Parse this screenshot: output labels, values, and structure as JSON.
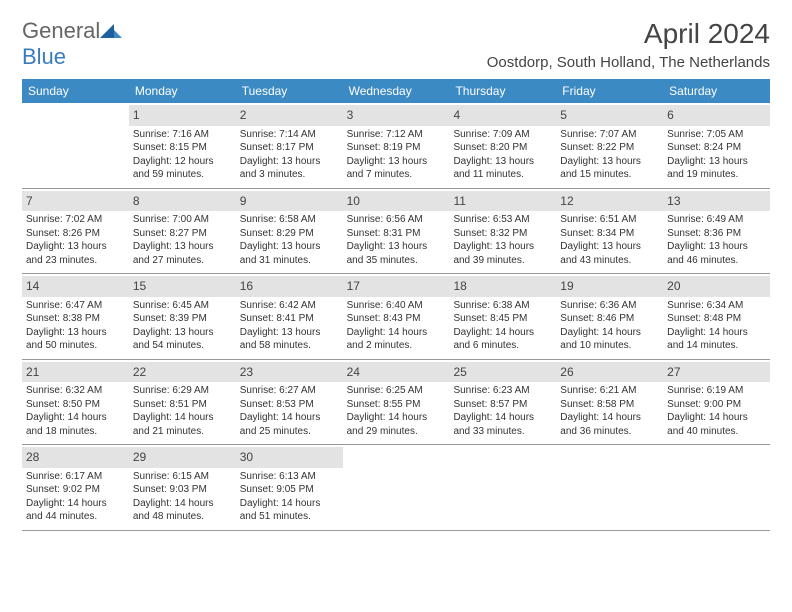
{
  "logo": {
    "text1": "General",
    "text2": "Blue"
  },
  "title": "April 2024",
  "location": "Oostdorp, South Holland, The Netherlands",
  "colors": {
    "header_bg": "#3b8ac4",
    "header_text": "#ffffff",
    "daynum_bg": "#e3e3e3",
    "row_border": "#999999",
    "text": "#333333",
    "logo_blue": "#3b7cbf"
  },
  "day_names": [
    "Sunday",
    "Monday",
    "Tuesday",
    "Wednesday",
    "Thursday",
    "Friday",
    "Saturday"
  ],
  "weeks": [
    [
      {
        "n": "",
        "sr": "",
        "ss": "",
        "dl": ""
      },
      {
        "n": "1",
        "sr": "7:16 AM",
        "ss": "8:15 PM",
        "dl": "12 hours and 59 minutes."
      },
      {
        "n": "2",
        "sr": "7:14 AM",
        "ss": "8:17 PM",
        "dl": "13 hours and 3 minutes."
      },
      {
        "n": "3",
        "sr": "7:12 AM",
        "ss": "8:19 PM",
        "dl": "13 hours and 7 minutes."
      },
      {
        "n": "4",
        "sr": "7:09 AM",
        "ss": "8:20 PM",
        "dl": "13 hours and 11 minutes."
      },
      {
        "n": "5",
        "sr": "7:07 AM",
        "ss": "8:22 PM",
        "dl": "13 hours and 15 minutes."
      },
      {
        "n": "6",
        "sr": "7:05 AM",
        "ss": "8:24 PM",
        "dl": "13 hours and 19 minutes."
      }
    ],
    [
      {
        "n": "7",
        "sr": "7:02 AM",
        "ss": "8:26 PM",
        "dl": "13 hours and 23 minutes."
      },
      {
        "n": "8",
        "sr": "7:00 AM",
        "ss": "8:27 PM",
        "dl": "13 hours and 27 minutes."
      },
      {
        "n": "9",
        "sr": "6:58 AM",
        "ss": "8:29 PM",
        "dl": "13 hours and 31 minutes."
      },
      {
        "n": "10",
        "sr": "6:56 AM",
        "ss": "8:31 PM",
        "dl": "13 hours and 35 minutes."
      },
      {
        "n": "11",
        "sr": "6:53 AM",
        "ss": "8:32 PM",
        "dl": "13 hours and 39 minutes."
      },
      {
        "n": "12",
        "sr": "6:51 AM",
        "ss": "8:34 PM",
        "dl": "13 hours and 43 minutes."
      },
      {
        "n": "13",
        "sr": "6:49 AM",
        "ss": "8:36 PM",
        "dl": "13 hours and 46 minutes."
      }
    ],
    [
      {
        "n": "14",
        "sr": "6:47 AM",
        "ss": "8:38 PM",
        "dl": "13 hours and 50 minutes."
      },
      {
        "n": "15",
        "sr": "6:45 AM",
        "ss": "8:39 PM",
        "dl": "13 hours and 54 minutes."
      },
      {
        "n": "16",
        "sr": "6:42 AM",
        "ss": "8:41 PM",
        "dl": "13 hours and 58 minutes."
      },
      {
        "n": "17",
        "sr": "6:40 AM",
        "ss": "8:43 PM",
        "dl": "14 hours and 2 minutes."
      },
      {
        "n": "18",
        "sr": "6:38 AM",
        "ss": "8:45 PM",
        "dl": "14 hours and 6 minutes."
      },
      {
        "n": "19",
        "sr": "6:36 AM",
        "ss": "8:46 PM",
        "dl": "14 hours and 10 minutes."
      },
      {
        "n": "20",
        "sr": "6:34 AM",
        "ss": "8:48 PM",
        "dl": "14 hours and 14 minutes."
      }
    ],
    [
      {
        "n": "21",
        "sr": "6:32 AM",
        "ss": "8:50 PM",
        "dl": "14 hours and 18 minutes."
      },
      {
        "n": "22",
        "sr": "6:29 AM",
        "ss": "8:51 PM",
        "dl": "14 hours and 21 minutes."
      },
      {
        "n": "23",
        "sr": "6:27 AM",
        "ss": "8:53 PM",
        "dl": "14 hours and 25 minutes."
      },
      {
        "n": "24",
        "sr": "6:25 AM",
        "ss": "8:55 PM",
        "dl": "14 hours and 29 minutes."
      },
      {
        "n": "25",
        "sr": "6:23 AM",
        "ss": "8:57 PM",
        "dl": "14 hours and 33 minutes."
      },
      {
        "n": "26",
        "sr": "6:21 AM",
        "ss": "8:58 PM",
        "dl": "14 hours and 36 minutes."
      },
      {
        "n": "27",
        "sr": "6:19 AM",
        "ss": "9:00 PM",
        "dl": "14 hours and 40 minutes."
      }
    ],
    [
      {
        "n": "28",
        "sr": "6:17 AM",
        "ss": "9:02 PM",
        "dl": "14 hours and 44 minutes."
      },
      {
        "n": "29",
        "sr": "6:15 AM",
        "ss": "9:03 PM",
        "dl": "14 hours and 48 minutes."
      },
      {
        "n": "30",
        "sr": "6:13 AM",
        "ss": "9:05 PM",
        "dl": "14 hours and 51 minutes."
      },
      {
        "n": "",
        "sr": "",
        "ss": "",
        "dl": ""
      },
      {
        "n": "",
        "sr": "",
        "ss": "",
        "dl": ""
      },
      {
        "n": "",
        "sr": "",
        "ss": "",
        "dl": ""
      },
      {
        "n": "",
        "sr": "",
        "ss": "",
        "dl": ""
      }
    ]
  ],
  "labels": {
    "sunrise": "Sunrise: ",
    "sunset": "Sunset: ",
    "daylight": "Daylight: "
  }
}
